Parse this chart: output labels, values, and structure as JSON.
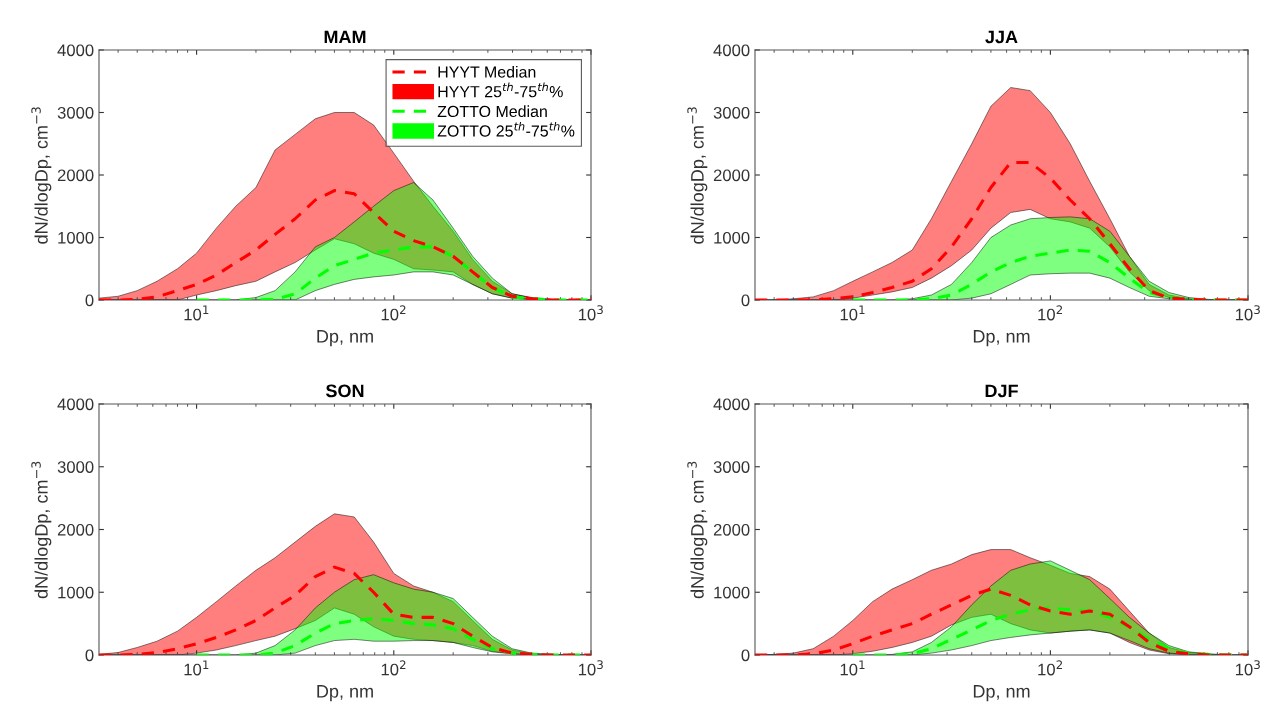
{
  "chart_data": [
    {
      "type": "line",
      "title": "MAM",
      "xlabel": "Dp, nm",
      "ylabel": "dN/dlogDp, cm$^{−3}$",
      "log": "x",
      "xlim": [
        3.2,
        1000
      ],
      "xticks": [
        {
          "value": 10,
          "label": "10$^{1}$"
        },
        {
          "value": 100,
          "label": "10$^{2}$"
        },
        {
          "value": 1000,
          "label": "10$^{3}$"
        }
      ],
      "ylim": [
        0,
        4000
      ],
      "yticks": [
        0,
        1000,
        2000,
        3000,
        4000
      ],
      "grid": false,
      "legend": "top right",
      "annotations": [
        "HYYT 25$^{th}$-75$^{th}$%",
        "ZOTTO 25$^{th}$-75$^{th}$%"
      ],
      "x": [
        3.2,
        4,
        5,
        6.3,
        8,
        10,
        12.6,
        15.8,
        20,
        25,
        31.6,
        40,
        50,
        63,
        79,
        100,
        126,
        158,
        200,
        251,
        316,
        398,
        501,
        631,
        794,
        1000
      ],
      "series": [
        {
          "name": "HYYT Median",
          "line_style": "dashed",
          "color": "#ff0000",
          "values": [
            0,
            0,
            10,
            50,
            150,
            250,
            400,
            600,
            800,
            1050,
            1300,
            1600,
            1750,
            1700,
            1400,
            1100,
            950,
            850,
            700,
            450,
            200,
            60,
            20,
            0,
            0,
            0
          ],
          "upper": [
            30,
            60,
            150,
            300,
            500,
            750,
            1150,
            1500,
            1800,
            2400,
            2650,
            2900,
            3000,
            3000,
            2800,
            2350,
            1900,
            1500,
            1100,
            650,
            300,
            100,
            40,
            10,
            0,
            0
          ],
          "lower": [
            0,
            0,
            0,
            0,
            0,
            80,
            150,
            230,
            300,
            450,
            600,
            800,
            980,
            900,
            750,
            650,
            500,
            480,
            450,
            250,
            100,
            30,
            10,
            0,
            0,
            0
          ]
        },
        {
          "name": "ZOTTO Median",
          "line_style": "dashed",
          "color": "#00ff00",
          "values": [
            null,
            null,
            null,
            null,
            null,
            0,
            0,
            0,
            0,
            10,
            100,
            350,
            550,
            650,
            750,
            800,
            850,
            850,
            700,
            450,
            200,
            50,
            20,
            0,
            0,
            0
          ],
          "upper": [
            0,
            0,
            0,
            0,
            0,
            0,
            0,
            0,
            40,
            150,
            450,
            850,
            1000,
            1250,
            1500,
            1750,
            1880,
            1600,
            1150,
            700,
            350,
            100,
            30,
            10,
            0,
            0
          ],
          "lower": [
            0,
            0,
            0,
            0,
            0,
            0,
            0,
            0,
            0,
            0,
            0,
            150,
            250,
            330,
            370,
            400,
            450,
            450,
            400,
            250,
            100,
            30,
            10,
            0,
            0,
            0
          ]
        }
      ]
    },
    {
      "type": "line",
      "title": "JJA",
      "xlabel": "Dp, nm",
      "ylabel": "dN/dlogDp, cm$^{−3}$",
      "log": "x",
      "xlim": [
        3.2,
        1000
      ],
      "xticks": [
        {
          "value": 10,
          "label": "10$^{1}$"
        },
        {
          "value": 100,
          "label": "10$^{2}$"
        },
        {
          "value": 1000,
          "label": "10$^{3}$"
        }
      ],
      "ylim": [
        0,
        4000
      ],
      "yticks": [
        0,
        1000,
        2000,
        3000,
        4000
      ],
      "grid": false,
      "x": [
        3.2,
        4,
        5,
        6.3,
        8,
        10,
        12.6,
        15.8,
        20,
        25,
        31.6,
        40,
        50,
        63,
        79,
        100,
        126,
        158,
        200,
        251,
        316,
        398,
        501,
        631,
        794,
        1000
      ],
      "series": [
        {
          "line_style": "dashed",
          "color": "#ff0000",
          "values": [
            0,
            0,
            0,
            0,
            20,
            50,
            120,
            200,
            300,
            500,
            850,
            1300,
            1800,
            2200,
            2200,
            1950,
            1600,
            1300,
            900,
            500,
            150,
            30,
            10,
            0,
            0,
            0
          ],
          "upper": [
            0,
            0,
            20,
            50,
            150,
            300,
            450,
            600,
            800,
            1300,
            1900,
            2500,
            3100,
            3400,
            3350,
            3000,
            2500,
            1900,
            1300,
            700,
            250,
            80,
            20,
            0,
            0,
            0
          ],
          "lower": [
            0,
            0,
            0,
            0,
            0,
            30,
            80,
            130,
            200,
            350,
            550,
            800,
            1150,
            1400,
            1450,
            1300,
            1250,
            1150,
            850,
            450,
            150,
            40,
            10,
            0,
            0,
            0
          ]
        },
        {
          "line_style": "dashed",
          "color": "#00ff00",
          "values": [
            null,
            null,
            null,
            null,
            null,
            0,
            0,
            0,
            0,
            20,
            80,
            250,
            450,
            600,
            700,
            750,
            800,
            780,
            600,
            350,
            120,
            40,
            10,
            0,
            0,
            0
          ],
          "upper": [
            0,
            0,
            0,
            0,
            0,
            0,
            0,
            0,
            20,
            80,
            250,
            600,
            1000,
            1200,
            1300,
            1320,
            1330,
            1300,
            1100,
            700,
            300,
            120,
            40,
            10,
            0,
            0
          ],
          "lower": [
            0,
            0,
            0,
            0,
            0,
            0,
            0,
            0,
            0,
            0,
            0,
            30,
            100,
            250,
            400,
            420,
            430,
            430,
            350,
            200,
            60,
            20,
            0,
            0,
            0,
            0
          ]
        }
      ]
    },
    {
      "type": "line",
      "title": "SON",
      "xlabel": "Dp, nm",
      "ylabel": "dN/dlogDp, cm$^{−3}$",
      "log": "x",
      "xlim": [
        3.2,
        1000
      ],
      "xticks": [
        {
          "value": 10,
          "label": "10$^{1}$"
        },
        {
          "value": 100,
          "label": "10$^{2}$"
        },
        {
          "value": 1000,
          "label": "10$^{3}$"
        }
      ],
      "ylim": [
        0,
        4000
      ],
      "yticks": [
        0,
        1000,
        2000,
        3000,
        4000
      ],
      "grid": false,
      "x": [
        3.2,
        4,
        5,
        6.3,
        8,
        10,
        12.6,
        15.8,
        20,
        25,
        31.6,
        40,
        50,
        63,
        79,
        100,
        126,
        158,
        200,
        251,
        316,
        398,
        501,
        631,
        794,
        1000
      ],
      "series": [
        {
          "line_style": "dashed",
          "color": "#ff0000",
          "values": [
            0,
            0,
            10,
            40,
            100,
            180,
            280,
            400,
            550,
            750,
            950,
            1250,
            1400,
            1300,
            1000,
            650,
            600,
            600,
            500,
            300,
            120,
            30,
            10,
            0,
            0,
            0
          ],
          "upper": [
            10,
            40,
            120,
            220,
            380,
            600,
            850,
            1100,
            1350,
            1550,
            1800,
            2050,
            2250,
            2200,
            1800,
            1300,
            1100,
            1000,
            850,
            550,
            250,
            80,
            20,
            0,
            0,
            0
          ],
          "lower": [
            0,
            0,
            0,
            0,
            0,
            30,
            80,
            150,
            230,
            300,
            420,
            550,
            750,
            650,
            450,
            300,
            250,
            230,
            200,
            150,
            60,
            20,
            0,
            0,
            0,
            0
          ]
        },
        {
          "line_style": "dashed",
          "color": "#00ff00",
          "values": [
            null,
            null,
            null,
            null,
            null,
            0,
            0,
            0,
            0,
            30,
            150,
            350,
            500,
            550,
            580,
            550,
            500,
            480,
            420,
            250,
            100,
            30,
            10,
            0,
            0,
            0
          ],
          "upper": [
            0,
            0,
            0,
            0,
            0,
            0,
            0,
            0,
            30,
            150,
            400,
            750,
            1000,
            1200,
            1280,
            1150,
            1050,
            1000,
            900,
            600,
            300,
            100,
            30,
            10,
            0,
            0
          ],
          "lower": [
            0,
            0,
            0,
            0,
            0,
            0,
            0,
            0,
            0,
            0,
            30,
            150,
            230,
            250,
            220,
            220,
            230,
            230,
            200,
            120,
            50,
            20,
            0,
            0,
            0,
            0
          ]
        }
      ]
    },
    {
      "type": "line",
      "title": "DJF",
      "xlabel": "Dp, nm",
      "ylabel": "dN/dlogDp, cm$^{−3}$",
      "log": "x",
      "xlim": [
        3.2,
        1000
      ],
      "xticks": [
        {
          "value": 10,
          "label": "10$^{1}$"
        },
        {
          "value": 100,
          "label": "10$^{2}$"
        },
        {
          "value": 1000,
          "label": "10$^{3}$"
        }
      ],
      "ylim": [
        0,
        4000
      ],
      "yticks": [
        0,
        1000,
        2000,
        3000,
        4000
      ],
      "grid": false,
      "x": [
        3.2,
        4,
        5,
        6.3,
        8,
        10,
        12.6,
        15.8,
        20,
        25,
        31.6,
        40,
        50,
        63,
        79,
        100,
        126,
        158,
        200,
        251,
        316,
        398,
        501,
        631,
        794,
        1000
      ],
      "series": [
        {
          "line_style": "dashed",
          "color": "#ff0000",
          "values": [
            0,
            0,
            0,
            20,
            80,
            180,
            300,
            400,
            500,
            650,
            800,
            950,
            1050,
            950,
            800,
            700,
            650,
            700,
            650,
            450,
            200,
            60,
            20,
            0,
            0,
            0
          ],
          "upper": [
            0,
            10,
            30,
            100,
            300,
            550,
            850,
            1050,
            1200,
            1350,
            1450,
            1600,
            1680,
            1680,
            1550,
            1430,
            1300,
            1250,
            1050,
            700,
            350,
            120,
            40,
            10,
            0,
            0
          ],
          "lower": [
            0,
            0,
            0,
            0,
            0,
            20,
            60,
            120,
            200,
            300,
            480,
            600,
            650,
            500,
            400,
            350,
            380,
            400,
            350,
            200,
            80,
            20,
            0,
            0,
            0,
            0
          ]
        },
        {
          "line_style": "dashed",
          "color": "#00ff00",
          "values": [
            null,
            null,
            null,
            null,
            null,
            0,
            0,
            0,
            20,
            100,
            250,
            400,
            550,
            650,
            720,
            750,
            720,
            700,
            600,
            450,
            250,
            100,
            30,
            10,
            0,
            0
          ],
          "upper": [
            0,
            0,
            0,
            0,
            0,
            0,
            0,
            10,
            50,
            200,
            450,
            800,
            1100,
            1350,
            1450,
            1500,
            1350,
            1200,
            900,
            600,
            350,
            150,
            50,
            20,
            0,
            0
          ],
          "lower": [
            0,
            0,
            0,
            0,
            0,
            0,
            0,
            0,
            0,
            30,
            80,
            150,
            230,
            280,
            320,
            350,
            380,
            400,
            350,
            230,
            100,
            30,
            10,
            0,
            0,
            0
          ]
        }
      ]
    }
  ]
}
